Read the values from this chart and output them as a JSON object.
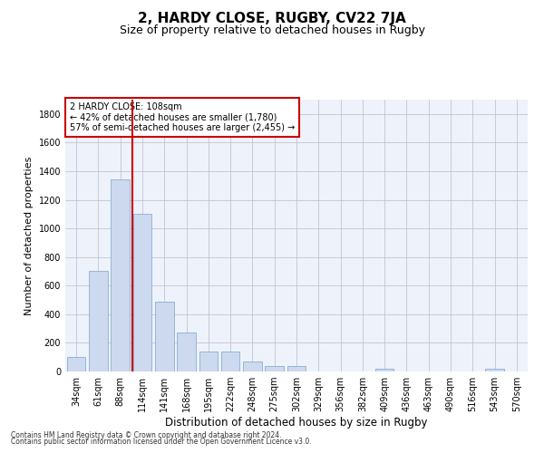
{
  "title": "2, HARDY CLOSE, RUGBY, CV22 7JA",
  "subtitle": "Size of property relative to detached houses in Rugby",
  "xlabel": "Distribution of detached houses by size in Rugby",
  "ylabel": "Number of detached properties",
  "categories": [
    "34sqm",
    "61sqm",
    "88sqm",
    "114sqm",
    "141sqm",
    "168sqm",
    "195sqm",
    "222sqm",
    "248sqm",
    "275sqm",
    "302sqm",
    "329sqm",
    "356sqm",
    "382sqm",
    "409sqm",
    "436sqm",
    "463sqm",
    "490sqm",
    "516sqm",
    "543sqm",
    "570sqm"
  ],
  "values": [
    100,
    700,
    1340,
    1100,
    490,
    270,
    140,
    140,
    70,
    35,
    35,
    0,
    0,
    0,
    20,
    0,
    0,
    0,
    0,
    20,
    0
  ],
  "bar_color": "#ccd9ee",
  "bar_edge_color": "#7aa3cc",
  "vline_color": "#cc0000",
  "annotation_text": "2 HARDY CLOSE: 108sqm\n← 42% of detached houses are smaller (1,780)\n57% of semi-detached houses are larger (2,455) →",
  "annotation_box_color": "#cc0000",
  "ylim": [
    0,
    1900
  ],
  "yticks": [
    0,
    200,
    400,
    600,
    800,
    1000,
    1200,
    1400,
    1600,
    1800
  ],
  "footer_line1": "Contains HM Land Registry data © Crown copyright and database right 2024.",
  "footer_line2": "Contains public sector information licensed under the Open Government Licence v3.0.",
  "grid_color": "#bbbbcc",
  "bg_color": "#eef2fa",
  "title_fontsize": 11,
  "subtitle_fontsize": 9,
  "tick_fontsize": 7,
  "ylabel_fontsize": 8,
  "xlabel_fontsize": 8.5,
  "footer_fontsize": 5.5
}
